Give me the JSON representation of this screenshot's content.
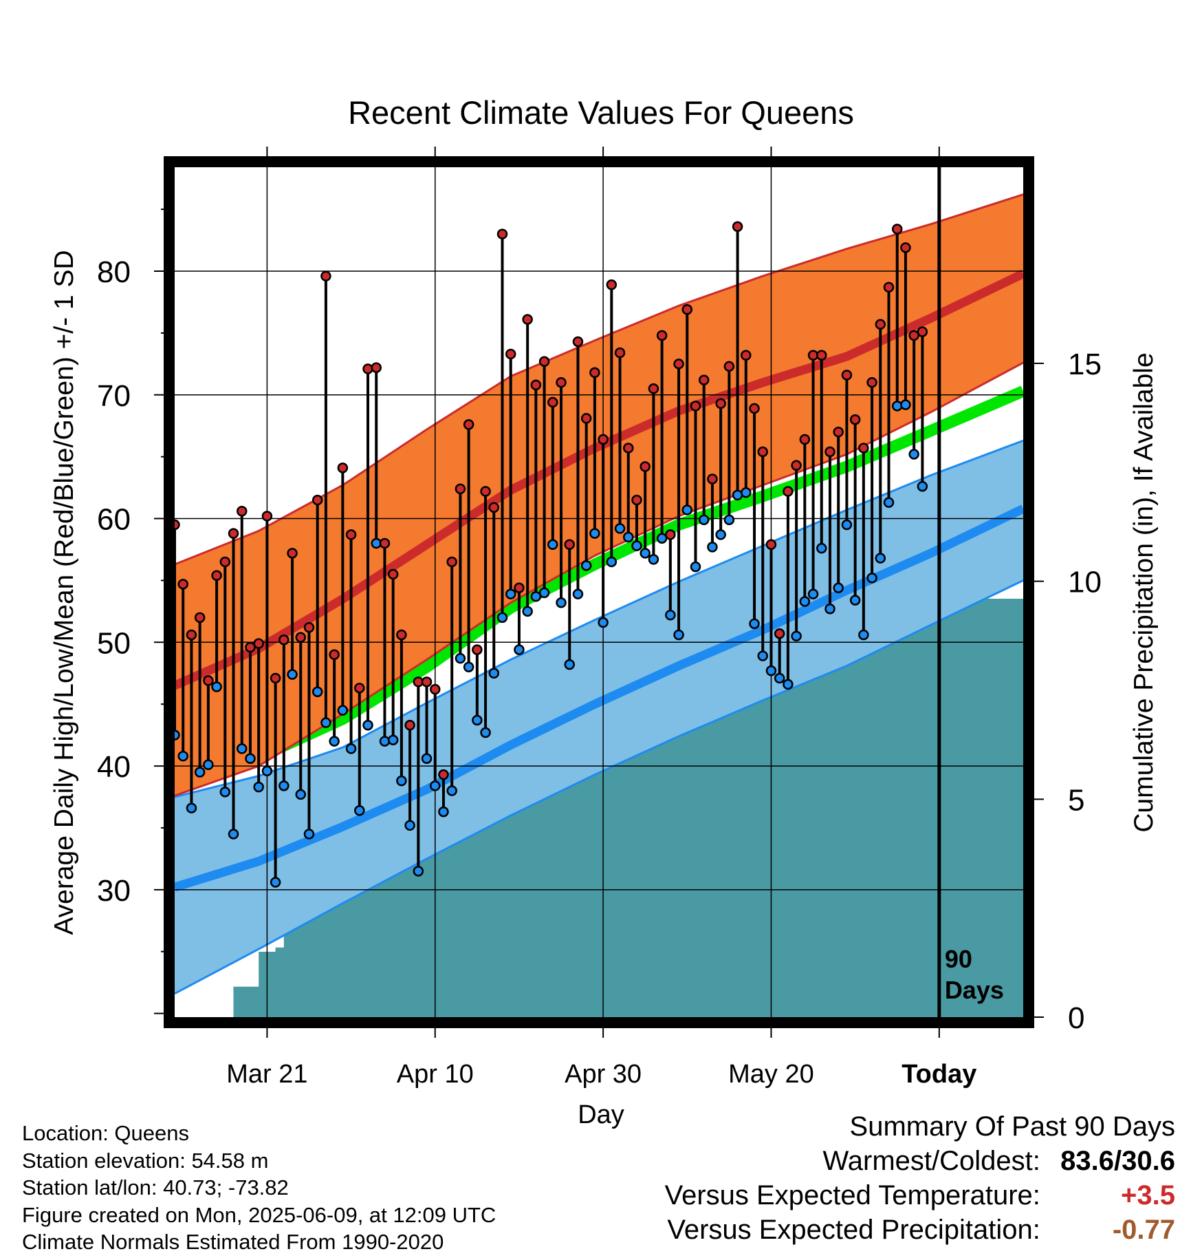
{
  "chart_data": {
    "type": "line",
    "title": "Recent Climate Values For Queens",
    "xlabel": "Day",
    "ylabel": "Average Daily High/Low/Mean (Red/Blue/Green) +/- 1 SD",
    "y2label": "Cumulative Precipitation (in), If Available",
    "x_tick_labels": [
      "Mar 21",
      "Apr 10",
      "Apr 30",
      "May 20",
      "Today"
    ],
    "x_tick_days": [
      11,
      31,
      51,
      71,
      91
    ],
    "x_range_days": [
      0,
      101
    ],
    "ylim": [
      19.7,
      88.4
    ],
    "y_ticks": [
      30,
      40,
      50,
      60,
      70,
      80
    ],
    "y2lim": [
      0,
      19.5
    ],
    "y2_ticks": [
      0,
      5,
      10,
      15
    ],
    "today_annotation": [
      "90",
      "Days"
    ],
    "normals": {
      "days": [
        0,
        10,
        20,
        30,
        40,
        50,
        60,
        70,
        80,
        90,
        101
      ],
      "high_mean": [
        46.5,
        49.5,
        53.5,
        57.9,
        62.3,
        65.7,
        68.7,
        71.0,
        73.1,
        76.2,
        79.8
      ],
      "high_upper": [
        56.3,
        59.0,
        62.7,
        67.2,
        71.5,
        74.4,
        77.2,
        79.6,
        81.8,
        83.8,
        86.2
      ],
      "high_lower": [
        37.6,
        40.0,
        44.2,
        48.6,
        53.2,
        57.0,
        60.2,
        62.7,
        65.2,
        68.6,
        72.6
      ],
      "mean_mean": [
        38.4,
        40.7,
        43.8,
        48.0,
        52.8,
        56.3,
        59.5,
        61.8,
        64.2,
        67.1,
        70.3
      ],
      "low_mean": [
        30.2,
        32.3,
        35.1,
        38.1,
        41.7,
        45.0,
        48.1,
        51.0,
        54.2,
        57.2,
        60.8
      ],
      "low_upper": [
        37.5,
        39.2,
        41.5,
        45.1,
        48.6,
        51.8,
        54.9,
        57.8,
        60.7,
        63.5,
        66.3
      ],
      "low_lower": [
        21.6,
        25.2,
        28.9,
        32.5,
        36.0,
        39.3,
        42.4,
        45.3,
        48.1,
        51.4,
        55.0
      ]
    },
    "daily": {
      "high": [
        59.5,
        54.7,
        50.6,
        52.0,
        46.9,
        55.4,
        56.5,
        58.8,
        60.6,
        49.6,
        49.9,
        60.2,
        47.1,
        50.2,
        57.2,
        50.4,
        51.2,
        61.5,
        79.6,
        49.0,
        64.1,
        58.7,
        46.3,
        72.1,
        72.2,
        58.0,
        55.5,
        50.6,
        43.3,
        46.8,
        46.8,
        46.2,
        39.3,
        56.5,
        62.4,
        67.6,
        49.4,
        62.2,
        60.9,
        83.0,
        73.3,
        54.4,
        76.1,
        70.8,
        72.7,
        69.4,
        71.0,
        57.9,
        74.3,
        68.1,
        71.8,
        66.4,
        78.9,
        73.4,
        65.7,
        61.5,
        64.2,
        70.5,
        74.8,
        58.7,
        72.5,
        76.9,
        69.1,
        71.2,
        63.2,
        69.3,
        72.3,
        83.6,
        73.2,
        68.9,
        65.4,
        57.9,
        50.7,
        62.2,
        64.3,
        66.4,
        73.2,
        73.2,
        65.4,
        67.0,
        71.6,
        68.0,
        65.7,
        71.0,
        75.7,
        78.7,
        83.4,
        81.9,
        74.8,
        75.1
      ],
      "low": [
        42.5,
        40.8,
        36.6,
        39.5,
        40.1,
        46.4,
        37.9,
        34.5,
        41.4,
        40.6,
        38.3,
        39.6,
        30.6,
        38.4,
        47.4,
        37.7,
        34.5,
        46.0,
        43.5,
        42.0,
        44.5,
        41.4,
        36.4,
        43.3,
        58.0,
        42.0,
        42.1,
        38.8,
        35.2,
        31.5,
        40.6,
        38.4,
        36.3,
        38.0,
        48.7,
        48.0,
        43.7,
        42.7,
        47.5,
        52.0,
        53.9,
        49.4,
        52.5,
        53.7,
        54.0,
        57.9,
        53.2,
        48.2,
        53.9,
        56.2,
        58.8,
        51.6,
        56.5,
        59.2,
        58.5,
        57.8,
        57.2,
        56.7,
        58.4,
        52.2,
        50.6,
        60.7,
        56.1,
        59.9,
        57.7,
        58.7,
        59.9,
        61.9,
        62.1,
        51.5,
        48.9,
        47.7,
        47.1,
        46.6,
        50.5,
        53.3,
        53.9,
        57.6,
        52.7,
        54.4,
        59.5,
        53.4,
        50.6,
        55.2,
        56.8,
        61.3,
        69.1,
        69.2,
        65.2,
        62.6
      ]
    },
    "cumulative_precip": [
      0,
      0,
      0,
      0,
      0,
      0,
      0.0,
      0.7,
      0.7,
      0.7,
      1.5,
      1.5,
      1.6,
      2.4,
      2.5,
      2.5,
      2.5,
      2.6,
      2.6,
      2.8,
      3.3,
      3.3,
      3.4,
      3.5,
      3.8,
      4.1,
      4.3,
      4.6,
      4.6,
      4.6,
      4.6,
      4.8,
      5.2,
      5.3,
      5.3,
      5.8,
      6.2,
      6.3,
      6.5,
      6.6,
      6.6,
      6.6,
      6.6,
      6.6,
      6.6,
      6.6,
      6.6,
      6.6,
      7.0,
      7.0,
      7.0,
      7.0,
      7.0,
      7.0,
      7.0,
      7.3,
      7.6,
      7.8,
      7.8,
      8.0,
      8.3,
      8.3,
      8.3,
      8.5,
      8.6,
      8.6,
      8.6,
      8.6,
      8.6,
      8.6,
      8.6,
      8.6,
      8.9,
      8.9,
      8.9,
      8.9,
      8.9,
      9.0,
      9.0,
      9.2,
      9.2,
      9.4,
      9.4,
      9.4,
      9.4,
      9.4,
      9.6,
      9.6,
      9.6,
      9.6,
      9.6
    ],
    "series": [
      {
        "color": "#cc2b2b"
      },
      {
        "color": "#1e8bf0"
      },
      {
        "color": "#00e600"
      }
    ],
    "colors": {
      "high_band": "#f47a2f",
      "low_band": "#7fbfe6",
      "precip_fill": "#4a9aa3",
      "axis": "#000000"
    }
  },
  "footer": {
    "location": "Location: Queens",
    "elevation": "Station elevation: 54.58 m",
    "latlon": "Station lat/lon: 40.73; -73.82",
    "created": "Figure created on Mon, 2025-06-09, at 12:09 UTC",
    "normals": "Climate Normals Estimated From 1990-2020"
  },
  "summary": {
    "title": "Summary Of Past 90 Days",
    "warmest_coldest_label": "Warmest/Coldest:",
    "warmest_coldest_value": "83.6/30.6",
    "temp_label": "Versus Expected Temperature:",
    "temp_value": "+3.5",
    "temp_color": "#cc2b2b",
    "precip_label": "Versus Expected Precipitation:",
    "precip_value": "-0.77",
    "precip_color": "#a05a2c"
  }
}
